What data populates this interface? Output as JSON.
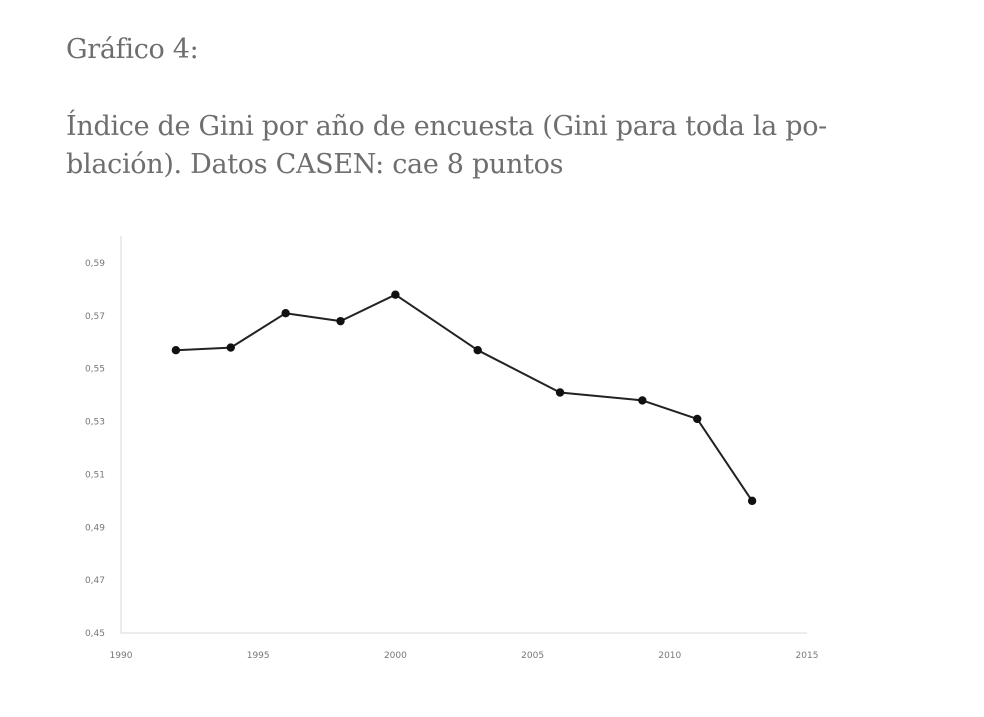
{
  "figure_label": "Gráfico 4:",
  "caption_lines": [
    "Índice de Gini por año de encuesta (Gini para toda la po-",
    "blación). Datos CASEN: cae 8 puntos"
  ],
  "colors": {
    "text": "#6e6e6e",
    "line": "#222222",
    "axis": "#d9d9d9"
  },
  "chart_data": {
    "type": "line",
    "title": "Índice de Gini por año de encuesta (Gini para toda la población). Datos CASEN: cae 8 puntos",
    "xlabel": "",
    "ylabel": "",
    "xlim": [
      1990,
      2015
    ],
    "ylim": [
      0.45,
      0.6
    ],
    "grid": false,
    "x_ticks": [
      1990,
      1995,
      2000,
      2005,
      2010,
      2015
    ],
    "x_tick_labels": [
      "1990",
      "1995",
      "2000",
      "2005",
      "2010",
      "2015"
    ],
    "y_ticks": [
      0.45,
      0.47,
      0.49,
      0.51,
      0.53,
      0.55,
      0.57,
      0.59
    ],
    "y_tick_labels": [
      "0,45",
      "0,47",
      "0,49",
      "0,51",
      "0,53",
      "0,55",
      "0,57",
      "0,59"
    ],
    "series": [
      {
        "x": [
          1992,
          1994,
          1996,
          1998,
          2000,
          2003,
          2006,
          2009,
          2011,
          2013
        ],
        "y": [
          0.557,
          0.558,
          0.571,
          0.568,
          0.578,
          0.557,
          0.541,
          0.538,
          0.531,
          0.5
        ]
      }
    ]
  }
}
